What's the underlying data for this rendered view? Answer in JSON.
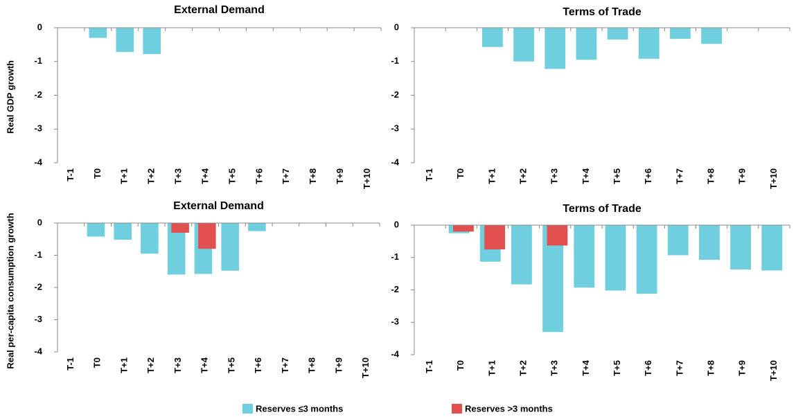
{
  "chart_data": [
    {
      "type": "bar",
      "title": "External Demand",
      "ylabel": "Real GDP growth",
      "categories": [
        "T-1",
        "T0",
        "T+1",
        "T+2",
        "T+3",
        "T+4",
        "T+5",
        "T+6",
        "T+7",
        "T+8",
        "T+9",
        "T+10"
      ],
      "series": [
        {
          "name": "Reserves ≤3 months",
          "color": "#6fcfdf",
          "values": [
            0,
            -0.3,
            -0.72,
            -0.78,
            0,
            0,
            0,
            0,
            0,
            0,
            0,
            0
          ]
        }
      ],
      "ylim": [
        -4,
        0
      ],
      "yticks": [
        -4,
        -3,
        -2,
        -1,
        0
      ]
    },
    {
      "type": "bar",
      "title": "Terms of Trade",
      "categories": [
        "T-1",
        "T0",
        "T+1",
        "T+2",
        "T+3",
        "T+4",
        "T+5",
        "T+6",
        "T+7",
        "T+8",
        "T+9",
        "T+10"
      ],
      "series": [
        {
          "name": "Reserves ≤3 months",
          "color": "#6fcfdf",
          "values": [
            0,
            0,
            -0.57,
            -1.0,
            -1.22,
            -0.95,
            -0.35,
            -0.92,
            -0.33,
            -0.48,
            0,
            0
          ]
        }
      ],
      "ylim": [
        -4,
        0
      ],
      "yticks": [
        -4,
        -3,
        -2,
        -1,
        0
      ]
    },
    {
      "type": "bar",
      "title": "External Demand",
      "ylabel": "Real per-capita consumption growth",
      "categories": [
        "T-1",
        "T0",
        "T+1",
        "T+2",
        "T+3",
        "T+4",
        "T+5",
        "T+6",
        "T+7",
        "T+8",
        "T+9",
        "T+10"
      ],
      "series": [
        {
          "name": "Reserves ≤3 months",
          "color": "#6fcfdf",
          "values": [
            0,
            -0.42,
            -0.52,
            -0.95,
            -1.6,
            -1.58,
            -1.48,
            -0.25,
            0,
            0,
            0,
            0
          ]
        },
        {
          "name": "Reserves >3 months",
          "color": "#e0504f",
          "values": [
            0,
            0,
            0,
            0,
            -0.3,
            -0.8,
            0,
            0,
            0,
            0,
            0,
            0
          ]
        }
      ],
      "ylim": [
        -4,
        0
      ],
      "yticks": [
        -4,
        -3,
        -2,
        -1,
        0
      ]
    },
    {
      "type": "bar",
      "title": "Terms of Trade",
      "categories": [
        "T-1",
        "T0",
        "T+1",
        "T+2",
        "T+3",
        "T+4",
        "T+5",
        "T+6",
        "T+7",
        "T+8",
        "T+9",
        "T+10"
      ],
      "series": [
        {
          "name": "Reserves ≤3 months",
          "color": "#6fcfdf",
          "values": [
            0,
            -0.25,
            -1.13,
            -1.83,
            -3.3,
            -1.93,
            -2.02,
            -2.12,
            -0.93,
            -1.07,
            -1.37,
            -1.4
          ]
        },
        {
          "name": "Reserves >3 months",
          "color": "#e0504f",
          "values": [
            0,
            -0.2,
            -0.75,
            0,
            -0.63,
            0,
            0,
            0,
            0,
            0,
            0,
            0
          ]
        }
      ],
      "ylim": [
        -4,
        0
      ],
      "yticks": [
        -4,
        -3,
        -2,
        -1,
        0
      ]
    }
  ]
}
